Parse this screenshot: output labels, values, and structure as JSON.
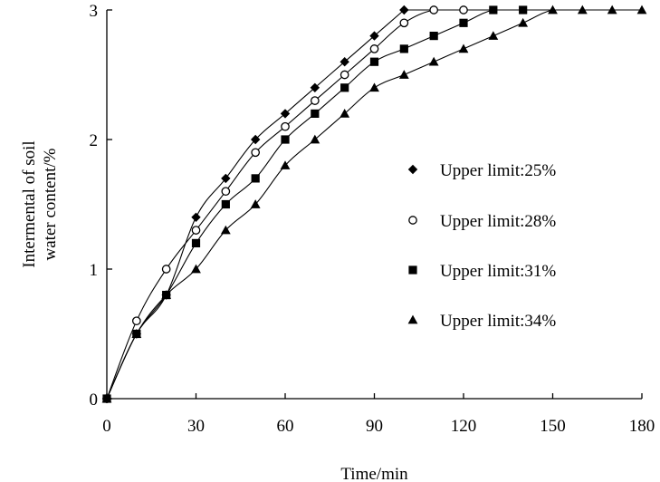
{
  "chart_data": {
    "type": "scatter",
    "xlabel": "Time/min",
    "ylabel_lines": [
      "Intermental of soil",
      "water content/%"
    ],
    "xlim": [
      0,
      180
    ],
    "ylim": [
      0,
      3
    ],
    "xticks": [
      0,
      30,
      60,
      90,
      120,
      150,
      180
    ],
    "yticks": [
      0,
      1,
      2,
      3
    ],
    "grid": false,
    "legend_position": "right",
    "colors": {
      "markers": "#000000",
      "lines": "#000000"
    },
    "series": [
      {
        "name": "Upper limit:25%",
        "marker": "diamond",
        "x": [
          0,
          10,
          20,
          30,
          40,
          50,
          60,
          70,
          80,
          90,
          100
        ],
        "y": [
          0,
          0.5,
          0.8,
          1.4,
          1.7,
          2.0,
          2.2,
          2.4,
          2.6,
          2.8,
          3.0
        ]
      },
      {
        "name": "Upper limit:28%",
        "marker": "circle-open",
        "x": [
          0,
          10,
          20,
          30,
          40,
          50,
          60,
          70,
          80,
          90,
          100,
          110,
          120
        ],
        "y": [
          0,
          0.6,
          1.0,
          1.3,
          1.6,
          1.9,
          2.1,
          2.3,
          2.5,
          2.7,
          2.9,
          3.0,
          3.0
        ]
      },
      {
        "name": "Upper limit:31%",
        "marker": "square",
        "x": [
          0,
          10,
          20,
          30,
          40,
          50,
          60,
          70,
          80,
          90,
          100,
          110,
          120,
          130,
          140
        ],
        "y": [
          0,
          0.5,
          0.8,
          1.2,
          1.5,
          1.7,
          2.0,
          2.2,
          2.4,
          2.6,
          2.7,
          2.8,
          2.9,
          3.0,
          3.0
        ]
      },
      {
        "name": "Upper limit:34%",
        "marker": "triangle",
        "x": [
          0,
          10,
          20,
          30,
          40,
          50,
          60,
          70,
          80,
          90,
          100,
          110,
          120,
          130,
          140,
          150,
          160,
          170,
          180
        ],
        "y": [
          0,
          0.5,
          0.8,
          1.0,
          1.3,
          1.5,
          1.8,
          2.0,
          2.2,
          2.4,
          2.5,
          2.6,
          2.7,
          2.8,
          2.9,
          3.0,
          3.0,
          3.0,
          3.0
        ]
      }
    ]
  }
}
